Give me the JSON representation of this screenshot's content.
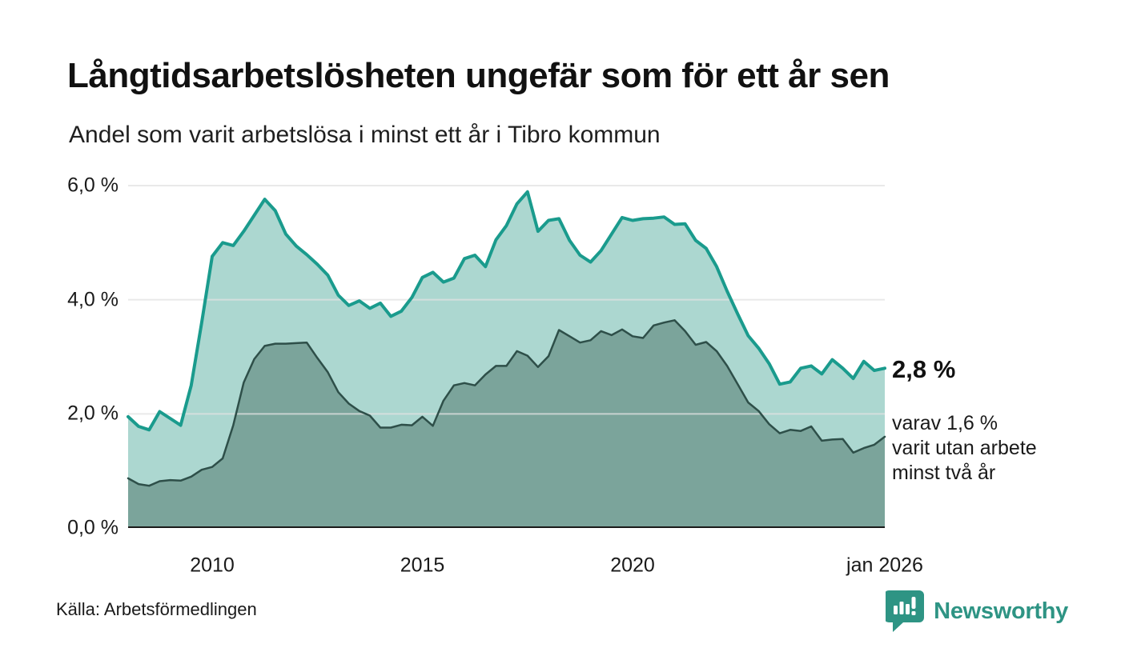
{
  "header": {
    "title": "Långtidsarbetslösheten ungefär som för ett år sen",
    "subtitle": "Andel som varit arbetslösa i minst ett år i Tibro kommun"
  },
  "annotation": {
    "value_label": "2,8 %",
    "detail": "varav 1,6 %\nvarit utan arbete\nminst två år"
  },
  "footer": {
    "source": "Källa: Arbetsförmedlingen",
    "brand": "Newsworthy",
    "brand_color": "#2E9484"
  },
  "chart_data": {
    "type": "area",
    "title": "Långtidsarbetslösheten ungefär som för ett år sen",
    "subtitle": "Andel som varit arbetslösa i minst ett år i Tibro kommun",
    "x_start": 2008,
    "x_step": 0.25,
    "x_end": 2026,
    "ylim": [
      0,
      6
    ],
    "grid": true,
    "legend": "none",
    "grid_color": "#e2e2e2",
    "baseline_color": "#1a1a1a",
    "yticks": [
      {
        "value": 6,
        "label": "6,0 %"
      },
      {
        "value": 4,
        "label": "4,0 %"
      },
      {
        "value": 2,
        "label": "2,0 %"
      },
      {
        "value": 0,
        "label": "0,0 %"
      }
    ],
    "xticks": [
      {
        "x": 2010,
        "label": "2010"
      },
      {
        "x": 2015,
        "label": "2015"
      },
      {
        "x": 2020,
        "label": "2020"
      },
      {
        "x": 2026,
        "label": "jan 2026"
      }
    ],
    "series": [
      {
        "name": "Arbetslösa minst ett år",
        "line_color": "#1A9B8D",
        "fill_color": "#ACD7D0",
        "line_width": 4,
        "end_label": "2,8 %",
        "values": [
          1.95,
          1.78,
          1.72,
          2.04,
          1.92,
          1.8,
          2.5,
          3.6,
          4.76,
          5.0,
          4.95,
          5.2,
          5.48,
          5.76,
          5.56,
          5.15,
          4.94,
          4.79,
          4.62,
          4.43,
          4.08,
          3.9,
          3.98,
          3.85,
          3.94,
          3.71,
          3.8,
          4.04,
          4.39,
          4.48,
          4.31,
          4.38,
          4.72,
          4.78,
          4.58,
          5.05,
          5.3,
          5.68,
          5.89,
          5.2,
          5.39,
          5.42,
          5.04,
          4.78,
          4.66,
          4.86,
          5.15,
          5.44,
          5.39,
          5.42,
          5.43,
          5.45,
          5.32,
          5.33,
          5.04,
          4.9,
          4.58,
          4.15,
          3.75,
          3.37,
          3.15,
          2.88,
          2.52,
          2.56,
          2.8,
          2.84,
          2.7,
          2.95,
          2.8,
          2.62,
          2.92,
          2.76,
          2.8
        ]
      },
      {
        "name": "Varav utan arbete minst två år",
        "line_color": "#2E4F49",
        "fill_color": "#7BA49B",
        "line_width": 2.5,
        "end_label": "varav 1,6 %",
        "values": [
          0.87,
          0.77,
          0.74,
          0.82,
          0.84,
          0.83,
          0.9,
          1.02,
          1.07,
          1.22,
          1.8,
          2.55,
          2.96,
          3.19,
          3.23,
          3.23,
          3.24,
          3.25,
          2.98,
          2.73,
          2.38,
          2.18,
          2.05,
          1.97,
          1.76,
          1.76,
          1.81,
          1.8,
          1.95,
          1.79,
          2.23,
          2.5,
          2.54,
          2.5,
          2.69,
          2.84,
          2.84,
          3.1,
          3.02,
          2.82,
          3.01,
          3.47,
          3.36,
          3.25,
          3.29,
          3.45,
          3.38,
          3.48,
          3.36,
          3.33,
          3.55,
          3.6,
          3.64,
          3.45,
          3.21,
          3.26,
          3.1,
          2.84,
          2.52,
          2.2,
          2.05,
          1.82,
          1.66,
          1.72,
          1.7,
          1.78,
          1.53,
          1.55,
          1.56,
          1.32,
          1.4,
          1.46,
          1.6
        ]
      }
    ]
  }
}
